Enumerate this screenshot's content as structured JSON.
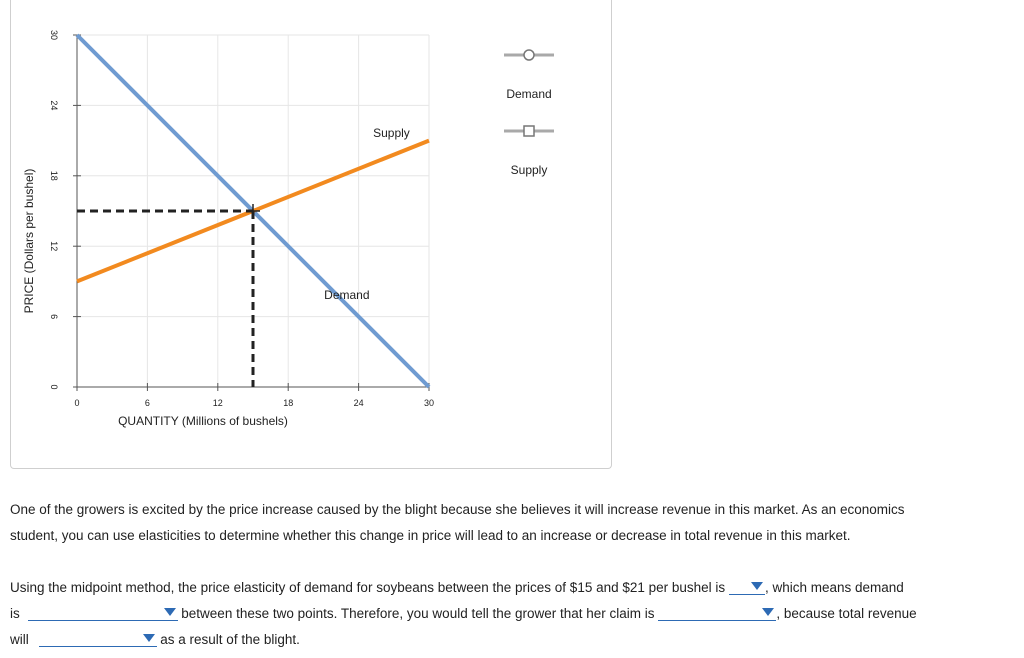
{
  "chart_data": {
    "type": "line",
    "xlabel": "QUANTITY (Millions of bushels)",
    "ylabel": "PRICE (Dollars per bushel)",
    "xlim": [
      0,
      30
    ],
    "ylim": [
      0,
      30
    ],
    "xticks": [
      0,
      6,
      12,
      18,
      24,
      30
    ],
    "yticks": [
      0,
      6,
      12,
      18,
      24,
      30
    ],
    "grid": true,
    "series": [
      {
        "name": "Demand",
        "color": "#6f9bd1",
        "marker": "circle",
        "x": [
          0,
          30
        ],
        "y": [
          30,
          0
        ]
      },
      {
        "name": "Supply",
        "color": "#f28a1f",
        "marker": "square",
        "x": [
          0,
          30
        ],
        "y": [
          9,
          21
        ]
      }
    ],
    "curve_labels": [
      {
        "text": "Supply",
        "x": 26.8,
        "y": 21.3
      },
      {
        "text": "Demand",
        "x": 23.0,
        "y": 7.5
      }
    ],
    "equilibrium": {
      "x": 15,
      "y": 15
    },
    "legend": {
      "placement": "right",
      "items": [
        "Demand",
        "Supply"
      ]
    }
  },
  "text": {
    "paragraph1_line1": "One of the growers is excited by the price increase caused by the blight because she believes it will increase revenue in this market. As an economics",
    "paragraph1_line2": "student, you can use elasticities to determine whether this change in price will lead to an increase or decrease in total revenue in this market.",
    "q_part1": "Using the midpoint method, the price elasticity of demand for soybeans between the prices of $15 and $21 per bushel is",
    "q_part2": ", which means demand",
    "q_part3": "is",
    "q_part4": "between these two points. Therefore, you would tell the grower that her claim is",
    "q_part5": ", because total revenue",
    "q_part6": "will",
    "q_part7": "as a result of the blight."
  },
  "dropdowns": {
    "elasticity_value": "",
    "demand_type": "",
    "claim_validity": "",
    "revenue_change": ""
  }
}
